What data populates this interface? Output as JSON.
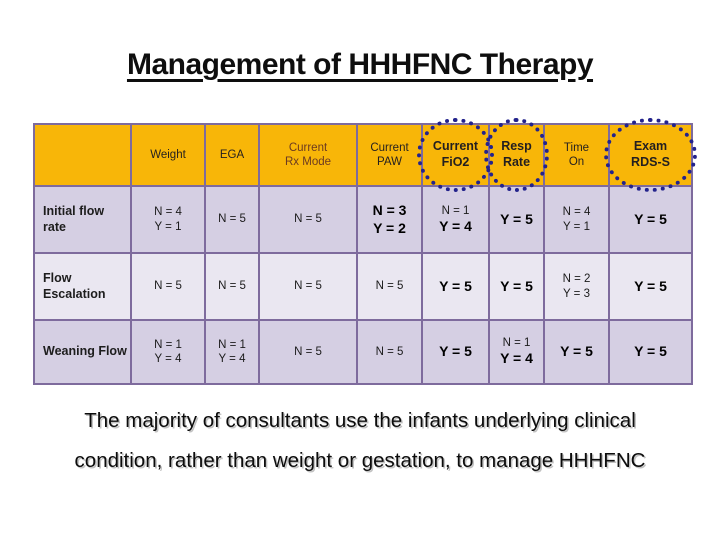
{
  "slide": {
    "title": "Management of HHHFNC Therapy",
    "caption_line1": "The majority of consultants use the infants underlying clinical",
    "caption_line2": "condition, rather than weight or gestation, to manage HHHFNC"
  },
  "colors": {
    "header_gold": "#F8B608",
    "row_band_dark": "#D5CFE3",
    "row_band_light": "#EAE7F1",
    "grid_purple": "#7E6B9D",
    "oval_navy": "#23238C",
    "header_text": "#231F20",
    "rx_mode_text": "#6B3A21"
  },
  "table": {
    "columns": [
      {
        "label": "",
        "bold": false,
        "circled": false,
        "maroon": false
      },
      {
        "label": "Weight",
        "bold": false,
        "circled": false,
        "maroon": false
      },
      {
        "label": "EGA",
        "bold": false,
        "circled": false,
        "maroon": false
      },
      {
        "label": "Current\nRx Mode",
        "bold": false,
        "circled": false,
        "maroon": true
      },
      {
        "label": "Current\nPAW",
        "bold": false,
        "circled": false,
        "maroon": false
      },
      {
        "label": "Current\nFiO2",
        "bold": true,
        "circled": true,
        "maroon": false
      },
      {
        "label": "Resp\nRate",
        "bold": true,
        "circled": true,
        "maroon": false
      },
      {
        "label": "Time\nOn",
        "bold": false,
        "circled": false,
        "maroon": false
      },
      {
        "label": "Exam\nRDS-S",
        "bold": true,
        "circled": true,
        "maroon": false
      }
    ],
    "rows": [
      {
        "label": "Initial flow rate",
        "cells": [
          [
            {
              "t": "N = 4",
              "b": false
            },
            {
              "t": "Y = 1",
              "b": false
            }
          ],
          [
            {
              "t": "N = 5",
              "b": false
            }
          ],
          [
            {
              "t": "N = 5",
              "b": false
            }
          ],
          [
            {
              "t": "N = 3",
              "b": true
            },
            {
              "t": "Y = 2",
              "b": true
            }
          ],
          [
            {
              "t": "N = 1",
              "b": false
            },
            {
              "t": "Y = 4",
              "b": true
            }
          ],
          [
            {
              "t": "Y = 5",
              "b": true
            }
          ],
          [
            {
              "t": "N = 4",
              "b": false
            },
            {
              "t": "Y = 1",
              "b": false
            }
          ],
          [
            {
              "t": "Y = 5",
              "b": true
            }
          ]
        ]
      },
      {
        "label": "Flow Escalation",
        "cells": [
          [
            {
              "t": "N = 5",
              "b": false
            }
          ],
          [
            {
              "t": "N = 5",
              "b": false
            }
          ],
          [
            {
              "t": "N = 5",
              "b": false
            }
          ],
          [
            {
              "t": "N = 5",
              "b": false
            }
          ],
          [
            {
              "t": "Y = 5",
              "b": true
            }
          ],
          [
            {
              "t": "Y = 5",
              "b": true
            }
          ],
          [
            {
              "t": "N = 2",
              "b": false
            },
            {
              "t": "Y = 3",
              "b": false
            }
          ],
          [
            {
              "t": "Y = 5",
              "b": true
            }
          ]
        ]
      },
      {
        "label": "Weaning Flow",
        "cells": [
          [
            {
              "t": "N = 1",
              "b": false
            },
            {
              "t": "Y = 4",
              "b": false
            }
          ],
          [
            {
              "t": "N = 1",
              "b": false
            },
            {
              "t": "Y = 4",
              "b": false
            }
          ],
          [
            {
              "t": "N = 5",
              "b": false
            }
          ],
          [
            {
              "t": "N = 5",
              "b": false
            }
          ],
          [
            {
              "t": "Y = 5",
              "b": true
            }
          ],
          [
            {
              "t": "N = 1",
              "b": false
            },
            {
              "t": "Y = 4",
              "b": true
            }
          ],
          [
            {
              "t": "Y = 5",
              "b": true
            }
          ],
          [
            {
              "t": "Y = 5",
              "b": true
            }
          ]
        ]
      }
    ]
  }
}
